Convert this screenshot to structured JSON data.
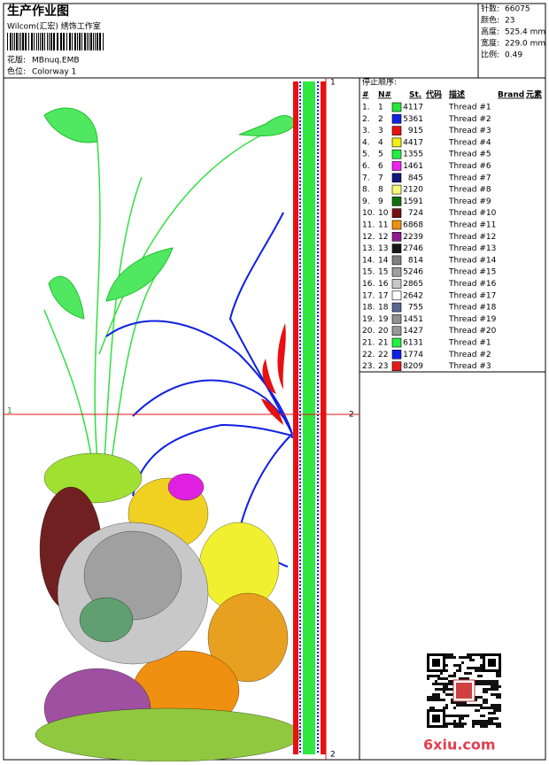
{
  "header": {
    "title": "生产作业图",
    "subtitle": "Wilcom(汇宏) 绣饰工作室",
    "design_label": "花版:",
    "design": "MBnuq.EMB",
    "colorway_label": "色位:",
    "colorway": "Colorway 1"
  },
  "stats": [
    {
      "label": "针数:",
      "value": "66075"
    },
    {
      "label": "颜色:",
      "value": "23"
    },
    {
      "label": "高度:",
      "value": "525.4 mm"
    },
    {
      "label": "宽度:",
      "value": "229.0 mm"
    },
    {
      "label": "比例:",
      "value": "0.49"
    }
  ],
  "guides": {
    "h_left": "1",
    "h_right": "2",
    "v_top": "1",
    "v_bottom": "2"
  },
  "table": {
    "title": "停止顺序:",
    "headers": [
      "#",
      "N#",
      "St.",
      "代码",
      "描述",
      "Brand",
      "元素"
    ],
    "rows": [
      {
        "index": "1.",
        "n": "1",
        "color": "#22e83c",
        "stitches": "4117",
        "desc": "Thread #1"
      },
      {
        "index": "2.",
        "n": "2",
        "color": "#1024e0",
        "stitches": "5361",
        "desc": "Thread #2"
      },
      {
        "index": "3.",
        "n": "3",
        "color": "#e81010",
        "stitches": "915",
        "desc": "Thread #3"
      },
      {
        "index": "4.",
        "n": "4",
        "color": "#f0f010",
        "stitches": "4417",
        "desc": "Thread #4"
      },
      {
        "index": "5.",
        "n": "5",
        "color": "#20f040",
        "stitches": "1355",
        "desc": "Thread #5"
      },
      {
        "index": "6.",
        "n": "6",
        "color": "#f020f0",
        "stitches": "1461",
        "desc": "Thread #6"
      },
      {
        "index": "7.",
        "n": "7",
        "color": "#101878",
        "stitches": "845",
        "desc": "Thread #7"
      },
      {
        "index": "8.",
        "n": "8",
        "color": "#f8f878",
        "stitches": "2120",
        "desc": "Thread #8"
      },
      {
        "index": "9.",
        "n": "9",
        "color": "#107010",
        "stitches": "1591",
        "desc": "Thread #9"
      },
      {
        "index": "10.",
        "n": "10",
        "color": "#781010",
        "stitches": "724",
        "desc": "Thread #10"
      },
      {
        "index": "11.",
        "n": "11",
        "color": "#f09010",
        "stitches": "6868",
        "desc": "Thread #11"
      },
      {
        "index": "12.",
        "n": "12",
        "color": "#901890",
        "stitches": "2239",
        "desc": "Thread #12"
      },
      {
        "index": "13.",
        "n": "13",
        "color": "#181818",
        "stitches": "2746",
        "desc": "Thread #13"
      },
      {
        "index": "14.",
        "n": "14",
        "color": "#808080",
        "stitches": "814",
        "desc": "Thread #14"
      },
      {
        "index": "15.",
        "n": "15",
        "color": "#a0a0a0",
        "stitches": "5246",
        "desc": "Thread #15"
      },
      {
        "index": "16.",
        "n": "16",
        "color": "#c8c8c8",
        "stitches": "2865",
        "desc": "Thread #16"
      },
      {
        "index": "17.",
        "n": "17",
        "color": "#ffffff",
        "stitches": "2642",
        "desc": "Thread #17"
      },
      {
        "index": "18.",
        "n": "18",
        "color": "#586890",
        "stitches": "755",
        "desc": "Thread #18"
      },
      {
        "index": "19.",
        "n": "19",
        "color": "#909090",
        "stitches": "1451",
        "desc": "Thread #19"
      },
      {
        "index": "20.",
        "n": "20",
        "color": "#989898",
        "stitches": "1427",
        "desc": "Thread #20"
      },
      {
        "index": "21.",
        "n": "21",
        "color": "#20f040",
        "stitches": "6131",
        "desc": "Thread #1"
      },
      {
        "index": "22.",
        "n": "22",
        "color": "#1020e8",
        "stitches": "1774",
        "desc": "Thread #2"
      },
      {
        "index": "23.",
        "n": "23",
        "color": "#e81818",
        "stitches": "8209",
        "desc": "Thread #3"
      }
    ]
  },
  "watermark": "6xiu.com"
}
